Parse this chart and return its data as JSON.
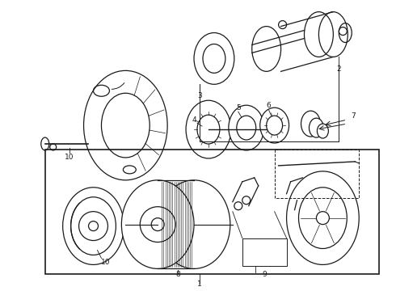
{
  "bg_color": "#ffffff",
  "line_color": "#1a1a1a",
  "fig_width": 4.9,
  "fig_height": 3.6,
  "dpi": 100,
  "label_fontsize": 6.5,
  "diagram_lw": 0.9
}
